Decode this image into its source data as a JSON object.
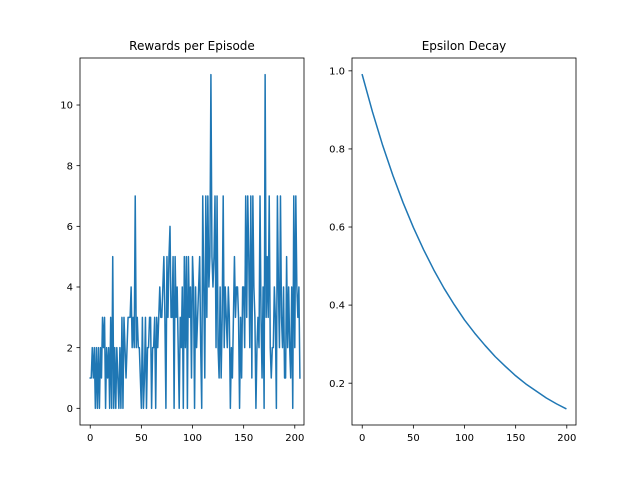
{
  "chart_data": [
    {
      "type": "line",
      "title": "Rewards per Episode",
      "xlabel": "",
      "ylabel": "",
      "xlim": [
        -10,
        209
      ],
      "ylim": [
        -0.55,
        11.55
      ],
      "xticks": [
        0,
        50,
        100,
        150,
        200
      ],
      "yticks": [
        0,
        2,
        4,
        6,
        8,
        10
      ],
      "grid": false,
      "color": "#1f77b4",
      "series": [
        {
          "x_start": 0,
          "values": [
            1,
            1,
            2,
            1,
            2,
            0,
            2,
            0,
            2,
            0,
            2,
            1,
            3,
            2,
            3,
            0,
            2,
            1,
            2,
            0,
            3,
            0,
            5,
            0,
            2,
            0,
            2,
            1,
            0,
            2,
            0,
            3,
            0,
            3,
            2,
            1,
            2,
            3,
            3,
            3,
            4,
            2,
            3,
            2,
            7,
            2,
            3,
            2,
            2,
            1,
            0,
            3,
            0,
            1,
            3,
            0,
            2,
            2,
            3,
            3,
            0,
            2,
            2,
            3,
            0,
            3,
            2,
            3,
            4,
            3,
            3,
            4,
            5,
            3,
            0,
            5,
            3,
            5,
            6,
            3,
            3,
            5,
            0,
            5,
            3,
            4,
            2,
            0,
            3,
            2,
            4,
            0,
            5,
            2,
            5,
            0,
            5,
            3,
            4,
            1,
            5,
            4,
            0,
            4,
            2,
            3,
            4,
            5,
            2,
            0,
            7,
            4,
            1,
            7,
            3,
            7,
            4,
            5,
            11,
            5,
            4,
            5,
            7,
            2,
            7,
            2,
            1,
            4,
            1,
            3,
            7,
            2,
            4,
            3,
            2,
            4,
            3,
            0,
            2,
            1,
            3,
            5,
            3,
            4,
            4,
            3,
            0,
            3,
            1,
            4,
            4,
            2,
            7,
            3,
            7,
            5,
            2,
            7,
            1,
            7,
            4,
            3,
            0,
            2,
            3,
            2,
            7,
            3,
            1,
            4,
            0,
            11,
            3,
            5,
            3,
            7,
            2,
            1,
            2,
            2,
            4,
            3,
            0,
            7,
            4,
            2,
            7,
            3,
            2,
            4,
            1,
            1,
            5,
            2,
            4,
            2,
            1,
            4,
            0,
            7,
            2,
            7,
            4,
            3,
            4,
            1
          ]
        }
      ]
    },
    {
      "type": "line",
      "title": "Epsilon Decay",
      "xlabel": "",
      "ylabel": "",
      "xlim": [
        -10,
        209
      ],
      "ylim": [
        0.0929,
        1.0329
      ],
      "xticks": [
        0,
        50,
        100,
        150,
        200
      ],
      "yticks": [
        0.2,
        0.4,
        0.6,
        0.8,
        1.0
      ],
      "yticks_text": [
        "0.2",
        "0.4",
        "0.6",
        "0.8",
        "1.0"
      ],
      "grid": false,
      "color": "#1f77b4",
      "series": [
        {
          "x": [
            0,
            10,
            20,
            30,
            40,
            50,
            60,
            70,
            80,
            90,
            100,
            110,
            120,
            130,
            140,
            150,
            160,
            170,
            180,
            190,
            199
          ],
          "values": [
            0.99,
            0.895,
            0.809,
            0.732,
            0.662,
            0.599,
            0.542,
            0.49,
            0.443,
            0.401,
            0.362,
            0.328,
            0.297,
            0.268,
            0.243,
            0.219,
            0.198,
            0.18,
            0.162,
            0.147,
            0.135
          ]
        }
      ]
    }
  ]
}
